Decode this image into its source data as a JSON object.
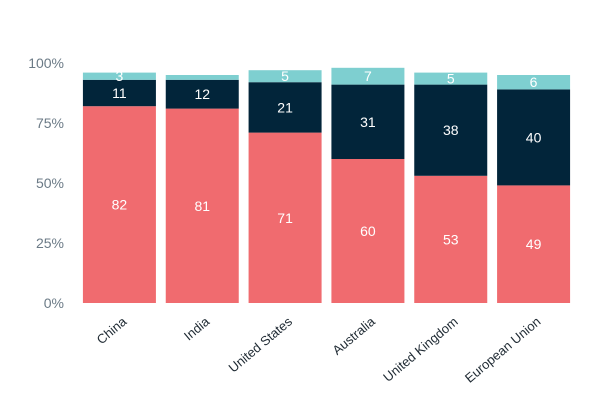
{
  "chart_data": {
    "type": "bar",
    "stacked": true,
    "categories": [
      "China",
      "India",
      "United States",
      "Australia",
      "United Kingdom",
      "European Union"
    ],
    "series": [
      {
        "values": [
          82,
          81,
          71,
          60,
          53,
          49
        ],
        "color": "#f06b6f",
        "label_color": "#ffffff"
      },
      {
        "values": [
          11,
          12,
          21,
          31,
          38,
          40
        ],
        "color": "#02253a",
        "label_color": "#ffffff"
      },
      {
        "values": [
          3,
          2,
          5,
          7,
          5,
          6
        ],
        "color": "#7ecfd0",
        "label_color": "#ffffff"
      }
    ],
    "data_labels": [
      [
        "82",
        "81",
        "71",
        "60",
        "53",
        "49"
      ],
      [
        "11",
        "12",
        "21",
        "31",
        "38",
        "40"
      ],
      [
        "3",
        "",
        "5",
        "7",
        "5",
        "6"
      ]
    ],
    "ylim": [
      0,
      100
    ],
    "yticks": [
      "0%",
      "25%",
      "50%",
      "75%",
      "100%"
    ],
    "ytick_values": [
      0,
      25,
      50,
      75,
      100
    ],
    "xlabel": "",
    "ylabel": "",
    "grid": false,
    "legend": "none"
  }
}
